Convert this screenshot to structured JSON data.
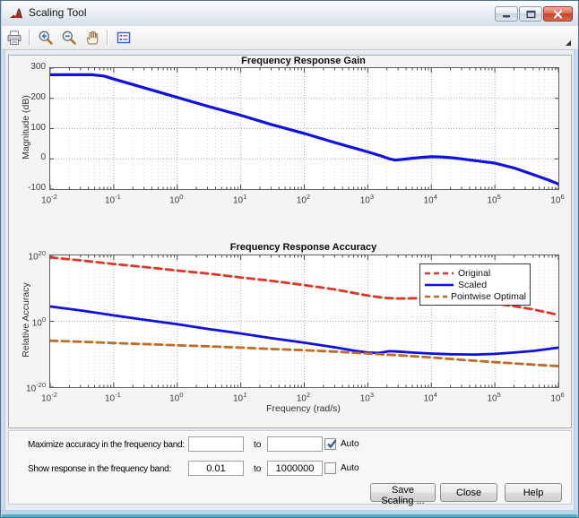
{
  "window": {
    "title": "Scaling Tool"
  },
  "titlebar": {
    "buttons": [
      "minimize",
      "maximize",
      "close"
    ]
  },
  "toolbar": {
    "icons": [
      "print-icon",
      "zoom-in-icon",
      "zoom-out-icon",
      "pan-icon",
      "insert-legend-icon",
      "overflow-arrow-icon"
    ]
  },
  "colors": {
    "scaled_blue": "#1010e0",
    "original_red": "#dc352a",
    "pointwise_orange": "#bd6d28",
    "close_button_red": "#c8402a",
    "window_frame_blue": "#bed3ea"
  },
  "controls": {
    "row1_label": "Maximize accuracy in the frequency band:",
    "row1_from": "",
    "row1_to": "",
    "row1_auto_label": "Auto",
    "row1_auto_checked": true,
    "row2_label": "Show response in the frequency band:",
    "row2_from": "0.01",
    "row2_to": "1000000",
    "row2_auto_label": "Auto",
    "row2_auto_checked": false,
    "to_label": "to",
    "save_button": "Save Scaling ...",
    "close_button": "Close",
    "help_button": "Help"
  },
  "chart_data": [
    {
      "type": "line",
      "title": "Frequency Response Gain",
      "xlabel": "",
      "ylabel": "Magnitude (dB)",
      "xscale": "log",
      "xlim": [
        0.01,
        1000000
      ],
      "ylim": [
        -100,
        300
      ],
      "yticks": [
        300,
        200,
        100,
        0,
        -100
      ],
      "xtick_exponents": [
        -2,
        -1,
        0,
        1,
        2,
        3,
        4,
        5,
        6
      ],
      "grid": true,
      "series": [
        {
          "name": "",
          "color": "#1010e0",
          "style": "solid",
          "width": 3.2,
          "points": [
            [
              0.01,
              278
            ],
            [
              0.045,
              278
            ],
            [
              0.07,
              274
            ],
            [
              0.1,
              264
            ],
            [
              0.3,
              235
            ],
            [
              1,
              203
            ],
            [
              3,
              174
            ],
            [
              10,
              144
            ],
            [
              30,
              114
            ],
            [
              100,
              84
            ],
            [
              300,
              54
            ],
            [
              1000,
              23
            ],
            [
              1600,
              10
            ],
            [
              2200,
              0
            ],
            [
              2700,
              -4
            ],
            [
              3500,
              -2
            ],
            [
              5000,
              2
            ],
            [
              7000,
              5
            ],
            [
              10000,
              7
            ],
            [
              14000,
              6.5
            ],
            [
              20000,
              4
            ],
            [
              30000,
              0
            ],
            [
              50000,
              -6
            ],
            [
              100000,
              -14
            ],
            [
              200000,
              -30
            ],
            [
              400000,
              -52
            ],
            [
              700000,
              -70
            ],
            [
              1000000,
              -83
            ]
          ]
        }
      ]
    },
    {
      "type": "line",
      "title": "Frequency Response Accuracy",
      "xlabel": "Frequency (rad/s)",
      "ylabel": "Relative Accuracy",
      "xscale": "log",
      "yscale": "log",
      "xlim": [
        0.01,
        1000000
      ],
      "ylim_exponents": [
        -20,
        20
      ],
      "ytick_exponents": [
        20,
        0,
        -20
      ],
      "xtick_exponents": [
        -2,
        -1,
        0,
        1,
        2,
        3,
        4,
        5,
        6
      ],
      "grid": true,
      "legend": {
        "position": "northeast"
      },
      "series": [
        {
          "name": "Original",
          "color": "#dc352a",
          "style": "dashed",
          "width": 2.8,
          "points": [
            [
              0.01,
              19.4
            ],
            [
              0.03,
              18.5
            ],
            [
              0.1,
              17.4
            ],
            [
              0.3,
              16.5
            ],
            [
              1,
              15.4
            ],
            [
              3,
              14.5
            ],
            [
              10,
              13.3
            ],
            [
              30,
              12.3
            ],
            [
              100,
              11.0
            ],
            [
              300,
              9.7
            ],
            [
              1000,
              7.8
            ],
            [
              1800,
              7.1
            ],
            [
              3000,
              6.9
            ],
            [
              6000,
              7.0
            ],
            [
              10000,
              7.1
            ],
            [
              20000,
              6.9
            ],
            [
              40000,
              6.4
            ],
            [
              100000,
              5.4
            ],
            [
              200000,
              4.6
            ],
            [
              400000,
              3.6
            ],
            [
              700000,
              2.6
            ],
            [
              1000000,
              1.9
            ]
          ]
        },
        {
          "name": "Scaled",
          "color": "#1010e0",
          "style": "solid",
          "width": 2.8,
          "points": [
            [
              0.01,
              4.5
            ],
            [
              0.03,
              3.3
            ],
            [
              0.1,
              1.8
            ],
            [
              0.3,
              0.5
            ],
            [
              1,
              -0.9
            ],
            [
              3,
              -2.3
            ],
            [
              10,
              -3.7
            ],
            [
              30,
              -5.1
            ],
            [
              100,
              -6.5
            ],
            [
              300,
              -7.9
            ],
            [
              600,
              -8.9
            ],
            [
              1000,
              -9.5
            ],
            [
              1500,
              -9.6
            ],
            [
              2200,
              -9.1
            ],
            [
              3000,
              -9.2
            ],
            [
              5000,
              -9.5
            ],
            [
              10000,
              -9.8
            ],
            [
              20000,
              -10.0
            ],
            [
              50000,
              -10.1
            ],
            [
              100000,
              -9.9
            ],
            [
              200000,
              -9.5
            ],
            [
              400000,
              -9.0
            ],
            [
              700000,
              -8.4
            ],
            [
              1000000,
              -8.0
            ]
          ]
        },
        {
          "name": "Pointwise Optimal",
          "color": "#bd6d28",
          "style": "dashed",
          "width": 2.8,
          "points": [
            [
              0.01,
              -5.9
            ],
            [
              0.03,
              -6.2
            ],
            [
              0.1,
              -6.6
            ],
            [
              0.3,
              -6.9
            ],
            [
              1,
              -7.3
            ],
            [
              3,
              -7.6
            ],
            [
              10,
              -8.0
            ],
            [
              30,
              -8.4
            ],
            [
              100,
              -8.8
            ],
            [
              300,
              -9.2
            ],
            [
              1000,
              -9.8
            ],
            [
              3000,
              -10.3
            ],
            [
              10000,
              -11.0
            ],
            [
              30000,
              -11.7
            ],
            [
              100000,
              -12.4
            ],
            [
              300000,
              -13.0
            ],
            [
              1000000,
              -13.6
            ]
          ]
        }
      ]
    }
  ]
}
